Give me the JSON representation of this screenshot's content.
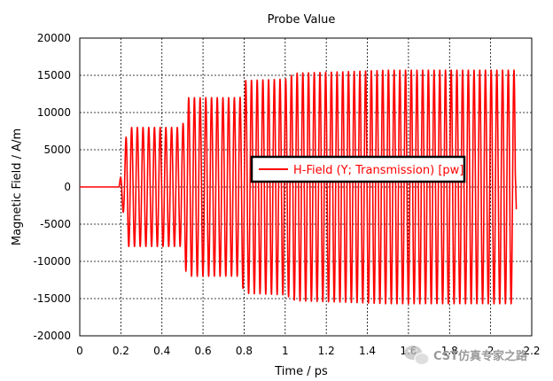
{
  "chart_data": {
    "type": "line",
    "title": "Probe Value",
    "xlabel": "Time / ps",
    "ylabel": "Magnetic Field / A/m",
    "xlim": [
      0,
      2.2
    ],
    "ylim": [
      -20000,
      20000
    ],
    "xticks": [
      0,
      0.2,
      0.4,
      0.6,
      0.8,
      1,
      1.2,
      1.4,
      1.6,
      1.8,
      2,
      2.2
    ],
    "xtick_labels": [
      "0",
      "0.2",
      "0.4",
      "0.6",
      "0.8",
      "1",
      "1.2",
      "1.4",
      "1.6",
      "1.8",
      "2",
      "2.2"
    ],
    "yticks": [
      -20000,
      -15000,
      -10000,
      -5000,
      0,
      5000,
      10000,
      15000,
      20000
    ],
    "ytick_labels": [
      "-20000",
      "-15000",
      "-10000",
      "-5000",
      "0",
      "5000",
      "10000",
      "15000",
      "20000"
    ],
    "grid": true,
    "legend_position": "center",
    "series": [
      {
        "name": "H-Field (Y; Transmission) [pw]",
        "color": "#ff0000",
        "signal_start": 0.19,
        "signal_end": 2.12,
        "oscillation_frequency_per_ps": 36,
        "envelope": {
          "t": [
            0.19,
            0.215,
            0.23,
            0.5,
            0.52,
            0.78,
            0.8,
            1.0,
            1.05,
            1.3,
            1.5,
            2.12
          ],
          "amplitude": [
            0,
            4000,
            8000,
            8000,
            12000,
            12000,
            14300,
            14500,
            15300,
            15500,
            15700,
            15700
          ]
        }
      }
    ]
  },
  "watermark": {
    "icon": "wechat-icon",
    "text": "CST仿真专家之路"
  }
}
